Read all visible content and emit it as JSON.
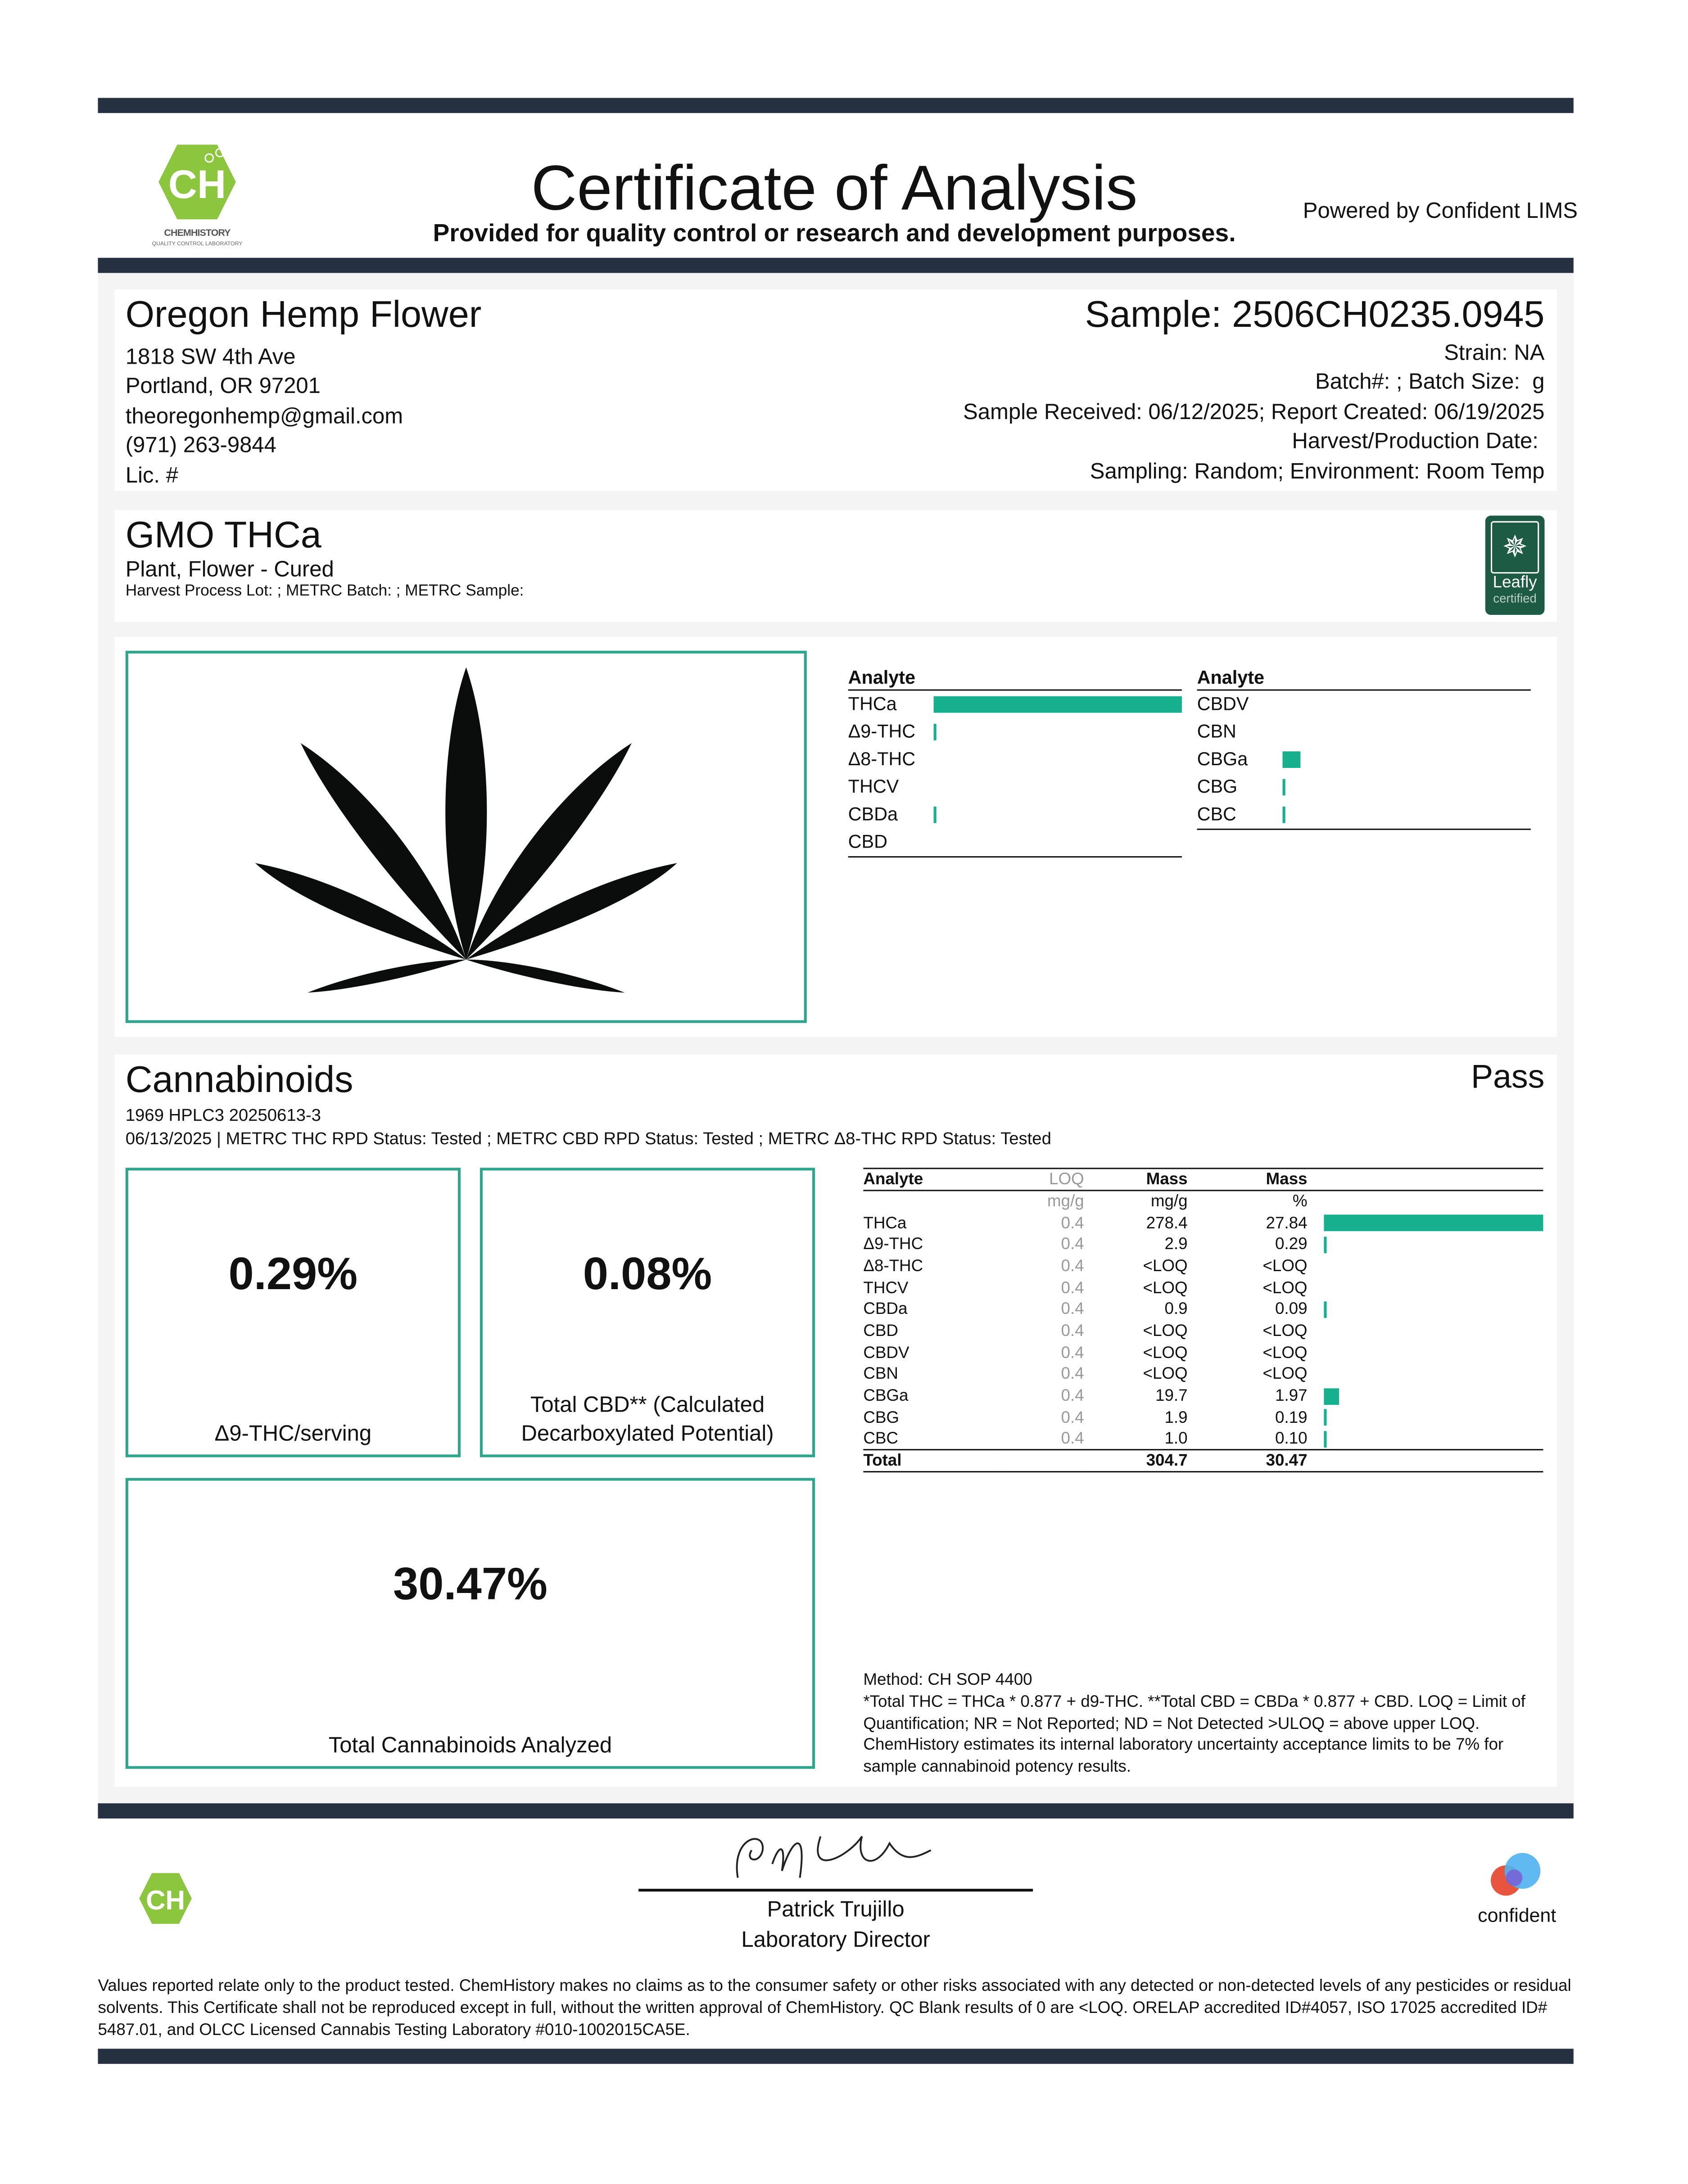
{
  "header": {
    "title": "Certificate of Analysis",
    "subtitle": "Provided for quality control or research and development purposes.",
    "powered_by": "Powered by Confident LIMS",
    "lab_logo_text": "CHEMHISTORY",
    "lab_logo_tagline": "QUALITY CONTROL LABORATORY",
    "lab_logo_letters": "CH"
  },
  "client": {
    "name": "Oregon Hemp Flower",
    "address1": "1818 SW 4th Ave",
    "address2": "Portland, OR 97201",
    "email": "theoregonhemp@gmail.com",
    "phone": "(971) 263-9844",
    "license": "Lic. #"
  },
  "sample": {
    "id": "Sample: 2506CH0235.0945",
    "strain": "Strain: NA",
    "batch": "Batch#: ; Batch Size:  g",
    "dates": "Sample Received: 06/12/2025; Report Created: 06/19/2025",
    "harvest": "Harvest/Production Date: ",
    "sampling": "Sampling: Random; Environment: Room Temp"
  },
  "product": {
    "name": "GMO THCa",
    "type": "Plant, Flower - Cured",
    "metrc": "Harvest Process Lot: ; METRC Batch: ; METRC Sample:",
    "badge_line1": "Leafly",
    "badge_line2": "certified"
  },
  "summary": {
    "header": "Analyte",
    "left": [
      {
        "name": "THCa",
        "pct": 27.84
      },
      {
        "name": "Δ9-THC",
        "pct": 0.29
      },
      {
        "name": "Δ8-THC",
        "pct": 0
      },
      {
        "name": "THCV",
        "pct": 0
      },
      {
        "name": "CBDa",
        "pct": 0.09
      },
      {
        "name": "CBD",
        "pct": 0
      }
    ],
    "right": [
      {
        "name": "CBDV",
        "pct": 0
      },
      {
        "name": "CBN",
        "pct": 0
      },
      {
        "name": "CBGa",
        "pct": 1.97
      },
      {
        "name": "CBG",
        "pct": 0.19
      },
      {
        "name": "CBC",
        "pct": 0.1
      }
    ]
  },
  "cannabinoids": {
    "title": "Cannabinoids",
    "status": "Pass",
    "instrument": "1969 HPLC3 20250613-3",
    "meta": "06/13/2025 | METRC THC RPD Status: Tested ; METRC CBD RPD Status: Tested ; METRC Δ8-THC RPD Status: Tested",
    "thc_value": "0.29%",
    "thc_label": "Δ9-THC/serving",
    "cbd_value": "0.08%",
    "cbd_label": "Total CBD** (Calculated Decarboxylated Potential)",
    "total_value": "30.47%",
    "total_label": "Total Cannabinoids Analyzed",
    "columns": [
      "Analyte",
      "LOQ",
      "Mass",
      "Mass"
    ],
    "units": [
      "",
      "mg/g",
      "mg/g",
      "%"
    ],
    "rows": [
      [
        "THCa",
        "0.4",
        "278.4",
        "27.84"
      ],
      [
        "Δ9-THC",
        "0.4",
        "2.9",
        "0.29"
      ],
      [
        "Δ8-THC",
        "0.4",
        "<LOQ",
        "<LOQ"
      ],
      [
        "THCV",
        "0.4",
        "<LOQ",
        "<LOQ"
      ],
      [
        "CBDa",
        "0.4",
        "0.9",
        "0.09"
      ],
      [
        "CBD",
        "0.4",
        "<LOQ",
        "<LOQ"
      ],
      [
        "CBDV",
        "0.4",
        "<LOQ",
        "<LOQ"
      ],
      [
        "CBN",
        "0.4",
        "<LOQ",
        "<LOQ"
      ],
      [
        "CBGa",
        "0.4",
        "19.7",
        "1.97"
      ],
      [
        "CBG",
        "0.4",
        "1.9",
        "0.19"
      ],
      [
        "CBC",
        "0.4",
        "1.0",
        "0.10"
      ]
    ],
    "total": [
      "Total",
      "",
      "304.7",
      "30.47"
    ],
    "method": "Method: CH SOP 4400",
    "notes": "*Total THC = THCa * 0.877 + d9-THC. **Total CBD = CBDa * 0.877 + CBD. LOQ = Limit of Quantification; NR = Not Reported; ND = Not Detected >ULOQ = above upper LOQ. ChemHistory estimates its internal laboratory uncertainty acceptance limits to be 7% for sample cannabinoid potency results."
  },
  "footer": {
    "signer": "Patrick Trujillo",
    "signer_title": "Laboratory Director",
    "confident_logo": "confident",
    "disclaimer": "Values reported relate only to the product tested. ChemHistory makes no claims as to the consumer safety or other risks associated with any detected or non-detected levels of any pesticides or residual solvents. This Certificate shall not be reproduced except in full, without the written approval of ChemHistory. QC Blank results of 0 are <LOQ.  ORELAP accredited ID#4057, ISO 17025 accredited ID# 5487.01, and OLCC Licensed Cannabis Testing Laboratory #010-1002015CA5E."
  },
  "colors": {
    "accent": "#17b08f",
    "bar": "#253140",
    "logo_green": "#8cc63f"
  }
}
